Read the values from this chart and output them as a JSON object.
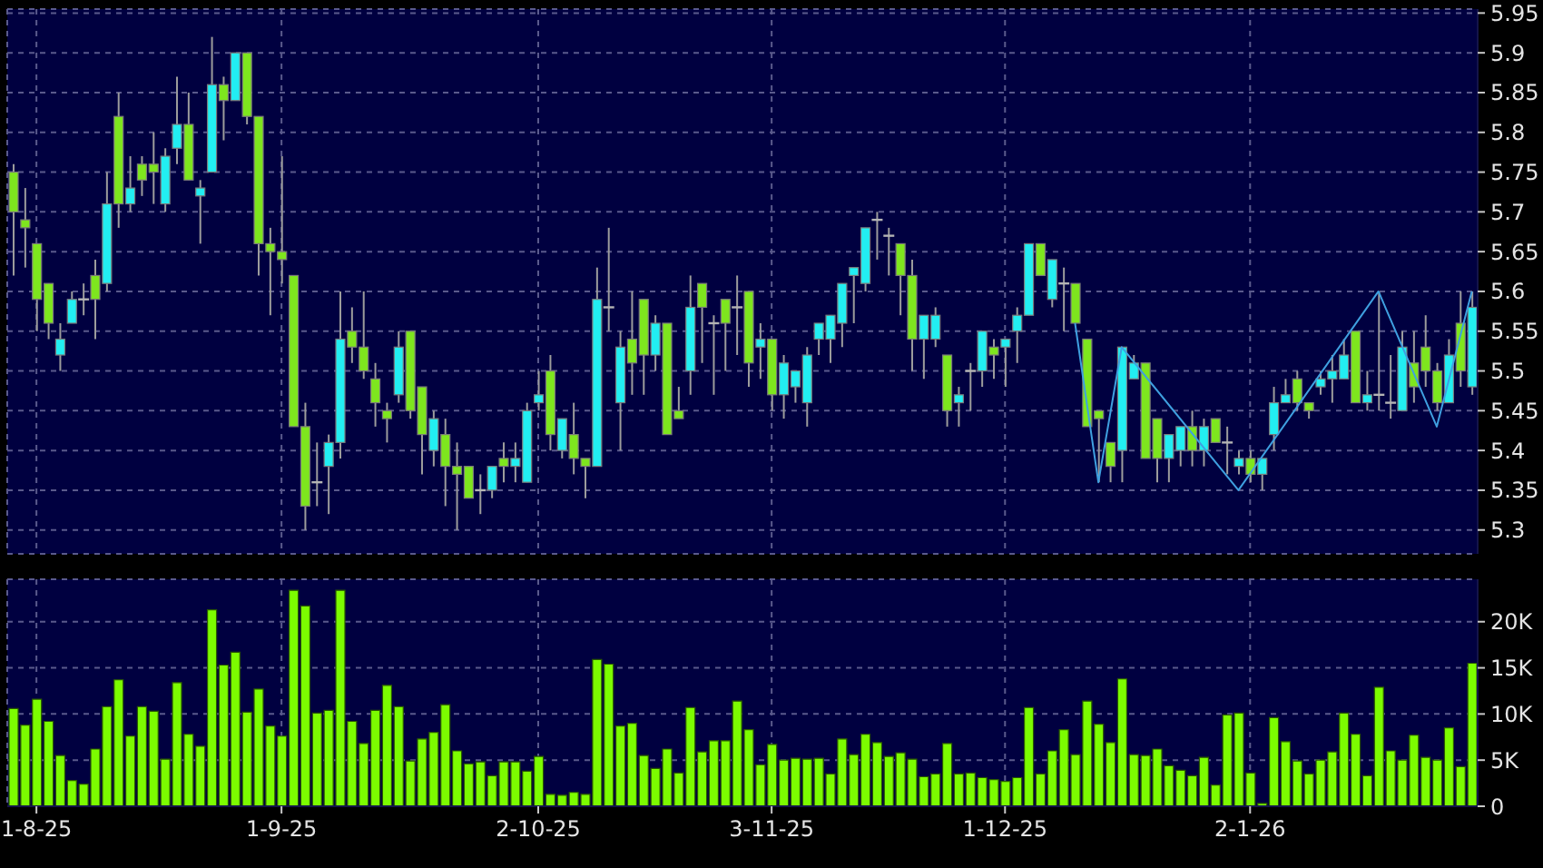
{
  "chart_data": [
    {
      "type": "candlestick",
      "categories": [
        null,
        null,
        null,
        null,
        null,
        null,
        null,
        null,
        null,
        null,
        null,
        null,
        null,
        null,
        null,
        null,
        null,
        null,
        null,
        null,
        null,
        null,
        null,
        null,
        null,
        null,
        null,
        null,
        null,
        null,
        null,
        null,
        null,
        null,
        null,
        null,
        null,
        null,
        null,
        null,
        null,
        null,
        null,
        null,
        null,
        null,
        null,
        null,
        null,
        null,
        null,
        null,
        null,
        null,
        null,
        null,
        null,
        null,
        null,
        null,
        null,
        null,
        null,
        null,
        null,
        null,
        null,
        null,
        null,
        null,
        null,
        null,
        null,
        null,
        null,
        null,
        null,
        null,
        null,
        null,
        null,
        null,
        null,
        null,
        null,
        null,
        null,
        null,
        null,
        null,
        null,
        null,
        null,
        null,
        null,
        null,
        null,
        null,
        null,
        null,
        null,
        null,
        null,
        null,
        null,
        null,
        null,
        null,
        null,
        null,
        null,
        null,
        null,
        null,
        null,
        null,
        null,
        null,
        null,
        null,
        null,
        null,
        null,
        null,
        null,
        null
      ],
      "ohlc": [
        [
          5.75,
          5.76,
          5.62,
          5.7
        ],
        [
          5.69,
          5.73,
          5.63,
          5.68
        ],
        [
          5.66,
          5.66,
          5.55,
          5.59
        ],
        [
          5.61,
          5.61,
          5.54,
          5.56
        ],
        [
          5.52,
          5.56,
          5.5,
          5.54
        ],
        [
          5.56,
          5.6,
          5.56,
          5.59
        ],
        [
          5.59,
          5.61,
          5.57,
          5.59
        ],
        [
          5.62,
          5.64,
          5.54,
          5.59
        ],
        [
          5.61,
          5.75,
          5.6,
          5.71
        ],
        [
          5.82,
          5.85,
          5.68,
          5.71
        ],
        [
          5.71,
          5.77,
          5.7,
          5.73
        ],
        [
          5.76,
          5.77,
          5.72,
          5.74
        ],
        [
          5.76,
          5.8,
          5.71,
          5.75
        ],
        [
          5.71,
          5.78,
          5.7,
          5.77
        ],
        [
          5.78,
          5.87,
          5.76,
          5.81
        ],
        [
          5.81,
          5.85,
          5.74,
          5.74
        ],
        [
          5.72,
          5.74,
          5.66,
          5.73
        ],
        [
          5.75,
          5.92,
          5.75,
          5.86
        ],
        [
          5.86,
          5.87,
          5.79,
          5.84
        ],
        [
          5.84,
          5.9,
          5.84,
          5.9
        ],
        [
          5.9,
          5.9,
          5.81,
          5.82
        ],
        [
          5.82,
          5.82,
          5.62,
          5.66
        ],
        [
          5.66,
          5.68,
          5.57,
          5.65
        ],
        [
          5.65,
          5.77,
          5.61,
          5.64
        ],
        [
          5.62,
          5.62,
          5.43,
          5.43
        ],
        [
          5.43,
          5.46,
          5.3,
          5.33
        ],
        [
          5.36,
          5.41,
          5.33,
          5.36
        ],
        [
          5.38,
          5.42,
          5.32,
          5.41
        ],
        [
          5.41,
          5.6,
          5.39,
          5.54
        ],
        [
          5.55,
          5.58,
          5.51,
          5.53
        ],
        [
          5.53,
          5.6,
          5.49,
          5.5
        ],
        [
          5.49,
          5.51,
          5.43,
          5.46
        ],
        [
          5.45,
          5.46,
          5.41,
          5.44
        ],
        [
          5.47,
          5.55,
          5.46,
          5.53
        ],
        [
          5.55,
          5.55,
          5.44,
          5.45
        ],
        [
          5.48,
          5.48,
          5.37,
          5.42
        ],
        [
          5.4,
          5.45,
          5.38,
          5.44
        ],
        [
          5.42,
          5.44,
          5.33,
          5.38
        ],
        [
          5.38,
          5.41,
          5.3,
          5.37
        ],
        [
          5.38,
          5.38,
          5.34,
          5.34
        ],
        [
          5.35,
          5.37,
          5.32,
          5.35
        ],
        [
          5.35,
          5.38,
          5.34,
          5.38
        ],
        [
          5.39,
          5.41,
          5.36,
          5.38
        ],
        [
          5.38,
          5.41,
          5.36,
          5.39
        ],
        [
          5.36,
          5.46,
          5.36,
          5.45
        ],
        [
          5.46,
          5.5,
          5.45,
          5.47
        ],
        [
          5.5,
          5.52,
          5.4,
          5.42
        ],
        [
          5.4,
          5.44,
          5.39,
          5.44
        ],
        [
          5.42,
          5.46,
          5.37,
          5.39
        ],
        [
          5.39,
          5.39,
          5.34,
          5.38
        ],
        [
          5.38,
          5.63,
          5.38,
          5.59
        ],
        [
          5.58,
          5.68,
          5.55,
          5.58
        ],
        [
          5.46,
          5.55,
          5.4,
          5.53
        ],
        [
          5.54,
          5.6,
          5.47,
          5.51
        ],
        [
          5.59,
          5.59,
          5.47,
          5.52
        ],
        [
          5.52,
          5.57,
          5.5,
          5.56
        ],
        [
          5.56,
          5.56,
          5.42,
          5.42
        ],
        [
          5.45,
          5.48,
          5.44,
          5.44
        ],
        [
          5.5,
          5.62,
          5.47,
          5.58
        ],
        [
          5.61,
          5.61,
          5.51,
          5.58
        ],
        [
          5.56,
          5.57,
          5.47,
          5.56
        ],
        [
          5.59,
          5.59,
          5.5,
          5.56
        ],
        [
          5.58,
          5.62,
          5.52,
          5.58
        ],
        [
          5.6,
          5.6,
          5.48,
          5.51
        ],
        [
          5.53,
          5.56,
          5.49,
          5.54
        ],
        [
          5.54,
          5.54,
          5.45,
          5.47
        ],
        [
          5.47,
          5.52,
          5.44,
          5.51
        ],
        [
          5.48,
          5.5,
          5.46,
          5.5
        ],
        [
          5.46,
          5.53,
          5.43,
          5.52
        ],
        [
          5.54,
          5.56,
          5.52,
          5.56
        ],
        [
          5.54,
          5.57,
          5.51,
          5.57
        ],
        [
          5.56,
          5.61,
          5.53,
          5.61
        ],
        [
          5.62,
          5.63,
          5.56,
          5.63
        ],
        [
          5.61,
          5.68,
          5.6,
          5.68
        ],
        [
          5.69,
          5.7,
          5.64,
          5.69
        ],
        [
          5.67,
          5.68,
          5.62,
          5.67
        ],
        [
          5.66,
          5.66,
          5.57,
          5.62
        ],
        [
          5.62,
          5.64,
          5.5,
          5.54
        ],
        [
          5.54,
          5.57,
          5.49,
          5.57
        ],
        [
          5.54,
          5.58,
          5.53,
          5.57
        ],
        [
          5.52,
          5.52,
          5.43,
          5.45
        ],
        [
          5.46,
          5.48,
          5.43,
          5.47
        ],
        [
          5.5,
          5.51,
          5.45,
          5.5
        ],
        [
          5.5,
          5.55,
          5.48,
          5.55
        ],
        [
          5.53,
          5.54,
          5.49,
          5.52
        ],
        [
          5.53,
          5.54,
          5.48,
          5.54
        ],
        [
          5.55,
          5.58,
          5.51,
          5.57
        ],
        [
          5.57,
          5.66,
          5.57,
          5.66
        ],
        [
          5.66,
          5.66,
          5.62,
          5.62
        ],
        [
          5.59,
          5.64,
          5.58,
          5.64
        ],
        [
          5.61,
          5.63,
          5.55,
          5.61
        ],
        [
          5.61,
          5.61,
          5.56,
          5.56
        ],
        [
          5.54,
          5.54,
          5.43,
          5.43
        ],
        [
          5.45,
          5.45,
          5.36,
          5.44
        ],
        [
          5.41,
          5.41,
          5.36,
          5.38
        ],
        [
          5.4,
          5.53,
          5.36,
          5.53
        ],
        [
          5.49,
          5.52,
          5.49,
          5.51
        ],
        [
          5.51,
          5.51,
          5.39,
          5.39
        ],
        [
          5.44,
          5.44,
          5.36,
          5.39
        ],
        [
          5.39,
          5.42,
          5.36,
          5.42
        ],
        [
          5.4,
          5.43,
          5.38,
          5.43
        ],
        [
          5.43,
          5.45,
          5.38,
          5.4
        ],
        [
          5.4,
          5.44,
          5.38,
          5.43
        ],
        [
          5.44,
          5.44,
          5.41,
          5.41
        ],
        [
          5.41,
          5.43,
          5.37,
          5.41
        ],
        [
          5.38,
          5.4,
          5.37,
          5.39
        ],
        [
          5.39,
          5.4,
          5.36,
          5.37
        ],
        [
          5.37,
          5.39,
          5.35,
          5.39
        ],
        [
          5.42,
          5.48,
          5.4,
          5.46
        ],
        [
          5.46,
          5.49,
          5.46,
          5.47
        ],
        [
          5.49,
          5.5,
          5.45,
          5.46
        ],
        [
          5.46,
          5.46,
          5.44,
          5.45
        ],
        [
          5.48,
          5.5,
          5.47,
          5.49
        ],
        [
          5.49,
          5.52,
          5.46,
          5.5
        ],
        [
          5.49,
          5.54,
          5.49,
          5.52
        ],
        [
          5.55,
          5.55,
          5.46,
          5.46
        ],
        [
          5.46,
          5.5,
          5.45,
          5.47
        ],
        [
          5.47,
          5.6,
          5.45,
          5.47
        ],
        [
          5.46,
          5.52,
          5.44,
          5.46
        ],
        [
          5.45,
          5.55,
          5.45,
          5.53
        ],
        [
          5.51,
          5.55,
          5.46,
          5.48
        ],
        [
          5.53,
          5.57,
          5.48,
          5.5
        ],
        [
          5.5,
          5.51,
          5.45,
          5.46
        ],
        [
          5.46,
          5.54,
          5.46,
          5.52
        ],
        [
          5.56,
          5.6,
          5.48,
          5.5
        ],
        [
          5.48,
          5.6,
          5.47,
          5.58
        ]
      ],
      "colors": [
        "#7ee61e",
        "#7ee61e",
        "#7ee61e",
        "#7ee61e",
        "#22eef2",
        "#22eef2",
        "#b4b4b4",
        "#7ee61e",
        "#22eef2",
        "#7ee61e",
        "#22eef2",
        "#7ee61e",
        "#7ee61e",
        "#22eef2",
        "#22eef2",
        "#7ee61e",
        "#22eef2",
        "#22eef2",
        "#7ee61e",
        "#22eef2",
        "#7ee61e",
        "#7ee61e",
        "#7ee61e",
        "#7ee61e",
        "#7ee61e",
        "#7ee61e",
        "#b4b4b4",
        "#22eef2",
        "#22eef2",
        "#7ee61e",
        "#7ee61e",
        "#7ee61e",
        "#7ee61e",
        "#22eef2",
        "#7ee61e",
        "#7ee61e",
        "#22eef2",
        "#7ee61e",
        "#7ee61e",
        "#7ee61e",
        "#b4b4b4",
        "#22eef2",
        "#7ee61e",
        "#22eef2",
        "#22eef2",
        "#22eef2",
        "#7ee61e",
        "#22eef2",
        "#7ee61e",
        "#7ee61e",
        "#22eef2",
        "#b4b4b4",
        "#22eef2",
        "#7ee61e",
        "#7ee61e",
        "#22eef2",
        "#7ee61e",
        "#7ee61e",
        "#22eef2",
        "#7ee61e",
        "#b4b4b4",
        "#7ee61e",
        "#b4b4b4",
        "#7ee61e",
        "#22eef2",
        "#7ee61e",
        "#22eef2",
        "#22eef2",
        "#22eef2",
        "#22eef2",
        "#22eef2",
        "#22eef2",
        "#22eef2",
        "#22eef2",
        "#b4b4b4",
        "#b4b4b4",
        "#7ee61e",
        "#7ee61e",
        "#22eef2",
        "#22eef2",
        "#7ee61e",
        "#22eef2",
        "#b4b4b4",
        "#22eef2",
        "#7ee61e",
        "#22eef2",
        "#22eef2",
        "#22eef2",
        "#7ee61e",
        "#22eef2",
        "#b4b4b4",
        "#7ee61e",
        "#7ee61e",
        "#7ee61e",
        "#7ee61e",
        "#22eef2",
        "#22eef2",
        "#7ee61e",
        "#7ee61e",
        "#22eef2",
        "#22eef2",
        "#7ee61e",
        "#22eef2",
        "#7ee61e",
        "#b4b4b4",
        "#22eef2",
        "#7ee61e",
        "#22eef2",
        "#22eef2",
        "#22eef2",
        "#7ee61e",
        "#7ee61e",
        "#22eef2",
        "#22eef2",
        "#22eef2",
        "#7ee61e",
        "#22eef2",
        "#b4b4b4",
        "#b4b4b4",
        "#22eef2",
        "#7ee61e",
        "#7ee61e",
        "#7ee61e",
        "#22eef2",
        "#7ee61e",
        "#22eef2"
      ],
      "series": [
        {
          "type": "line",
          "color": "#3fa0e0",
          "values": [
            null,
            null,
            null,
            null,
            null,
            null,
            null,
            null,
            null,
            null,
            null,
            null,
            null,
            null,
            null,
            null,
            null,
            null,
            null,
            null,
            null,
            null,
            null,
            null,
            null,
            null,
            null,
            null,
            null,
            null,
            null,
            null,
            null,
            null,
            null,
            null,
            null,
            null,
            null,
            null,
            null,
            null,
            null,
            null,
            null,
            null,
            null,
            null,
            null,
            null,
            null,
            null,
            null,
            null,
            null,
            null,
            null,
            null,
            null,
            null,
            null,
            null,
            null,
            null,
            null,
            null,
            null,
            null,
            null,
            null,
            null,
            null,
            null,
            null,
            null,
            null,
            null,
            null,
            null,
            null,
            null,
            null,
            null,
            null,
            null,
            null,
            null,
            null,
            null,
            null,
            null,
            5.56,
            null,
            5.36,
            null,
            5.53,
            null,
            null,
            null,
            null,
            null,
            null,
            null,
            null,
            null,
            5.35,
            null,
            null,
            null,
            null,
            null,
            null,
            null,
            null,
            null,
            null,
            null,
            5.6,
            null,
            null,
            null,
            null,
            5.43,
            null,
            null,
            5.6
          ]
        }
      ],
      "ylim": [
        5.27,
        5.955
      ],
      "yticks": [
        5.3,
        5.35,
        5.4,
        5.45,
        5.5,
        5.55,
        5.6,
        5.65,
        5.7,
        5.75,
        5.8,
        5.85,
        5.9,
        5.95
      ],
      "grid": true,
      "tick_labels": "y"
    },
    {
      "type": "bar",
      "categories": [
        null,
        null,
        "1-8-25",
        null,
        null,
        null,
        null,
        null,
        null,
        null,
        null,
        null,
        null,
        null,
        null,
        null,
        null,
        null,
        null,
        null,
        null,
        null,
        null,
        "1-9-25",
        null,
        null,
        null,
        null,
        null,
        null,
        null,
        null,
        null,
        null,
        null,
        null,
        null,
        null,
        null,
        null,
        null,
        null,
        null,
        null,
        null,
        "2-10-25",
        null,
        null,
        null,
        null,
        null,
        null,
        null,
        null,
        null,
        null,
        null,
        null,
        null,
        null,
        null,
        null,
        null,
        null,
        null,
        "3-11-25",
        null,
        null,
        null,
        null,
        null,
        null,
        null,
        null,
        null,
        null,
        null,
        null,
        null,
        null,
        null,
        null,
        null,
        null,
        null,
        "1-12-25",
        null,
        null,
        null,
        null,
        null,
        null,
        null,
        null,
        null,
        null,
        null,
        null,
        null,
        null,
        null,
        null,
        null,
        null,
        null,
        null,
        "2-1-26",
        null,
        null,
        null,
        null,
        null,
        null,
        null,
        null,
        null,
        null,
        null,
        null,
        null,
        null,
        null,
        null,
        null,
        null,
        null
      ],
      "values": [
        10600,
        8800,
        11600,
        9200,
        5500,
        2800,
        2400,
        6200,
        10800,
        13700,
        7600,
        10800,
        10300,
        5100,
        13400,
        7800,
        6500,
        21300,
        15300,
        16700,
        10200,
        12700,
        8700,
        7600,
        23400,
        21700,
        10100,
        10400,
        23400,
        9200,
        6800,
        10400,
        13100,
        10800,
        4900,
        7300,
        8000,
        11000,
        6000,
        4600,
        4800,
        3300,
        4800,
        4800,
        3800,
        5400,
        1300,
        1200,
        1500,
        1300,
        15900,
        15400,
        8700,
        9000,
        5500,
        4100,
        6200,
        3600,
        10700,
        5900,
        7100,
        7100,
        11400,
        8300,
        4500,
        6700,
        5000,
        5200,
        5100,
        5200,
        3500,
        7300,
        5600,
        7800,
        6900,
        5400,
        5800,
        5100,
        3200,
        3500,
        6800,
        3500,
        3600,
        3100,
        2900,
        2700,
        3100,
        10700,
        3500,
        6000,
        8300,
        5600,
        11400,
        8900,
        6900,
        13800,
        5600,
        5500,
        6200,
        4400,
        3900,
        3300,
        5300,
        2300,
        9900,
        10100,
        3600,
        300,
        9600,
        7000,
        4900,
        3500,
        5000,
        5900,
        10100,
        7800,
        3300,
        12900,
        6000,
        5000,
        7700,
        5300,
        5000,
        8500,
        4300,
        15500
      ],
      "color": "#7cfc00",
      "ylim": [
        0,
        24600
      ],
      "yticks": [
        0,
        {
          "value": 5000,
          "label": "5K"
        },
        {
          "value": 10000,
          "label": "10K"
        },
        {
          "value": 15000,
          "label": "15K"
        },
        {
          "value": 20000,
          "label": "20K"
        }
      ],
      "grid": true
    }
  ]
}
